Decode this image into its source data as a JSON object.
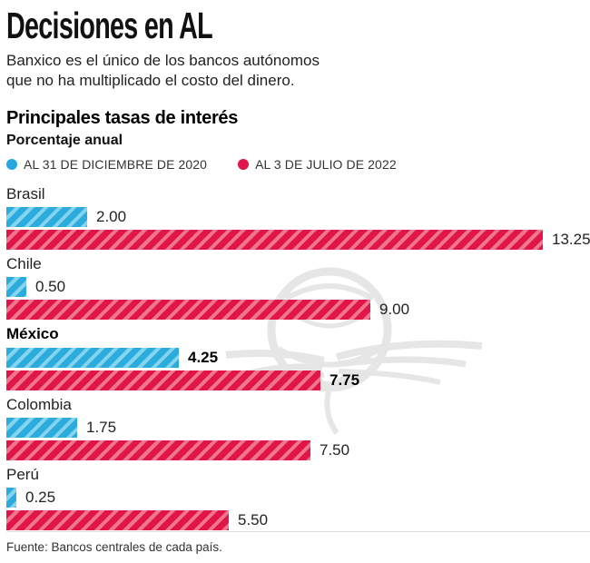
{
  "header": {
    "title": "Decisiones en AL",
    "subtitle_line1": "Banxico es el único de los bancos autónomos",
    "subtitle_line2": "que no ha multiplicado el costo del dinero."
  },
  "chart_header": {
    "heading": "Principales tasas de interés",
    "subheading": "Porcentaje anual"
  },
  "legend": {
    "item_2020": {
      "label": "AL 31 DE DICIEMBRE DE 2020",
      "color": "#29A8E0"
    },
    "item_2022": {
      "label": "AL 3 DE JULIO DE 2022",
      "color": "#E0164A"
    }
  },
  "colors": {
    "blue_dark": "#2BACDC",
    "blue_light": "#85D4EE",
    "red_dark": "#E0164A",
    "red_light": "#F0768E",
    "watermark_gray": "#E2E2E2"
  },
  "chart_data": {
    "type": "bar",
    "orientation": "horizontal",
    "title": "Principales tasas de interés",
    "unit_label": "Porcentaje anual",
    "xlim": [
      0,
      13.25
    ],
    "grid": false,
    "legend_position": "top",
    "categories": [
      "Brasil",
      "Chile",
      "México",
      "Colombia",
      "Perú"
    ],
    "highlighted_category": "México",
    "series": [
      {
        "name": "AL 31 DE DICIEMBRE DE 2020",
        "values": [
          2.0,
          0.5,
          4.25,
          1.75,
          0.25
        ]
      },
      {
        "name": "AL 3 DE JULIO DE 2022",
        "values": [
          13.25,
          9.0,
          7.75,
          7.5,
          5.5
        ]
      }
    ],
    "value_labels": {
      "s2020": [
        "2.00",
        "0.50",
        "4.25",
        "1.75",
        "0.25"
      ],
      "s2022": [
        "13.25",
        "9.00",
        "7.75",
        "7.50",
        "5.50"
      ]
    }
  },
  "footer": {
    "source": "Fuente: Bancos centrales de cada país."
  }
}
